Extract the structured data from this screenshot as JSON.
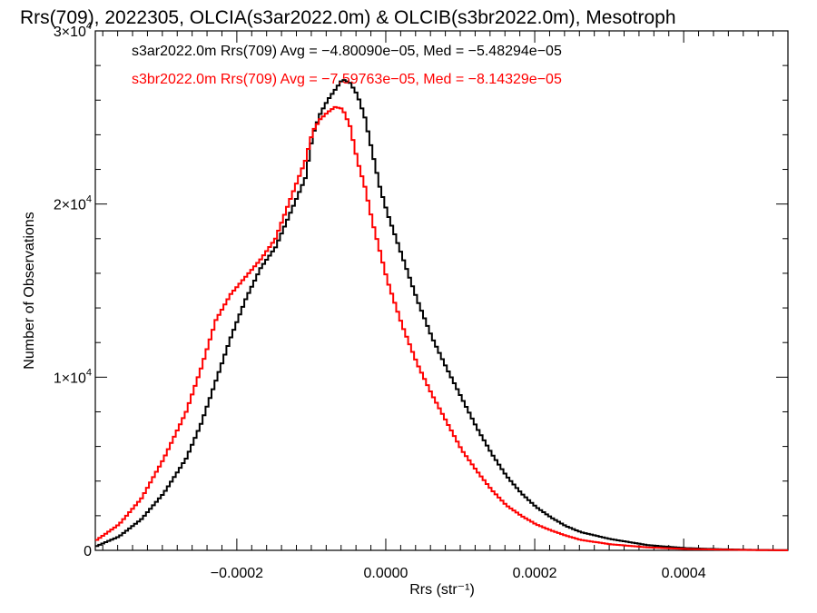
{
  "chart_data": {
    "type": "line",
    "title": "Rrs(709), 2022305, OLCIA(s3ar2022.0m) & OLCIB(s3br2022.0m), Mesotroph",
    "xlabel": "Rrs (str⁻¹)",
    "ylabel": "Number of Observations",
    "xlim": [
      -0.00039,
      0.00054
    ],
    "ylim": [
      0,
      30000
    ],
    "x_ticks": [
      {
        "value": -0.0002,
        "label": "−0.0002"
      },
      {
        "value": 0.0,
        "label": "0.0000"
      },
      {
        "value": 0.0002,
        "label": "0.0002"
      },
      {
        "value": 0.0004,
        "label": "0.0004"
      }
    ],
    "y_ticks": [
      {
        "value": 0,
        "mant": "0",
        "exp": ""
      },
      {
        "value": 10000,
        "mant": "1×10",
        "exp": "4"
      },
      {
        "value": 20000,
        "mant": "2×10",
        "exp": "4"
      },
      {
        "value": 30000,
        "mant": "3×10",
        "exp": "4"
      }
    ],
    "annotations": [
      "s3ar2022.0m Rrs(709) Avg = −4.80090e−05, Med = −5.48294e−05",
      "s3br2022.0m Rrs(709) Avg = −7.59763e−05, Med = −8.14329e−05"
    ],
    "grid": false,
    "series": [
      {
        "color": "#000000",
        "x": [
          -0.00039,
          -0.00036,
          -0.00033,
          -0.0003,
          -0.00027,
          -0.00025,
          -0.00023,
          -0.00021,
          -0.00019,
          -0.00017,
          -0.00015,
          -0.00013,
          -0.00011,
          -0.0001,
          -9e-05,
          -8e-05,
          -7e-05,
          -6e-05,
          -5e-05,
          -4e-05,
          -3e-05,
          -2e-05,
          -1e-05,
          0.0,
          2e-05,
          4e-05,
          6e-05,
          8e-05,
          0.0001,
          0.00012,
          0.00014,
          0.00016,
          0.00018,
          0.0002,
          0.00022,
          0.00024,
          0.00026,
          0.0003,
          0.00035,
          0.0004,
          0.00045,
          0.0005,
          0.00054
        ],
        "y": [
          250,
          800,
          1800,
          3300,
          5300,
          7300,
          9800,
          12300,
          14500,
          16300,
          17500,
          19500,
          21500,
          24000,
          25200,
          26000,
          26600,
          27200,
          27000,
          26300,
          25000,
          23000,
          21000,
          19500,
          17000,
          14500,
          12300,
          10500,
          8800,
          7100,
          5600,
          4300,
          3300,
          2500,
          1900,
          1400,
          1050,
          650,
          300,
          130,
          60,
          20,
          10
        ]
      },
      {
        "color": "#ff0000",
        "x": [
          -0.00039,
          -0.00036,
          -0.00033,
          -0.0003,
          -0.00027,
          -0.00025,
          -0.00023,
          -0.00021,
          -0.00019,
          -0.00017,
          -0.00015,
          -0.00013,
          -0.00011,
          -0.0001,
          -9e-05,
          -8e-05,
          -7e-05,
          -6e-05,
          -5e-05,
          -4e-05,
          -3e-05,
          -2e-05,
          -1e-05,
          0.0,
          2e-05,
          4e-05,
          6e-05,
          8e-05,
          0.0001,
          0.00012,
          0.00014,
          0.00016,
          0.00018,
          0.0002,
          0.00022,
          0.00024,
          0.00026,
          0.0003,
          0.00035,
          0.0004,
          0.00045,
          0.0005,
          0.00054
        ],
        "y": [
          600,
          1500,
          3000,
          5300,
          8000,
          10500,
          13300,
          14800,
          15800,
          16800,
          18000,
          20300,
          22500,
          24200,
          24900,
          25300,
          25600,
          25500,
          24500,
          22500,
          21000,
          19000,
          17300,
          15600,
          13000,
          10800,
          9000,
          7400,
          5800,
          4600,
          3500,
          2600,
          2000,
          1500,
          1150,
          850,
          600,
          350,
          170,
          80,
          40,
          15,
          5
        ]
      }
    ]
  }
}
